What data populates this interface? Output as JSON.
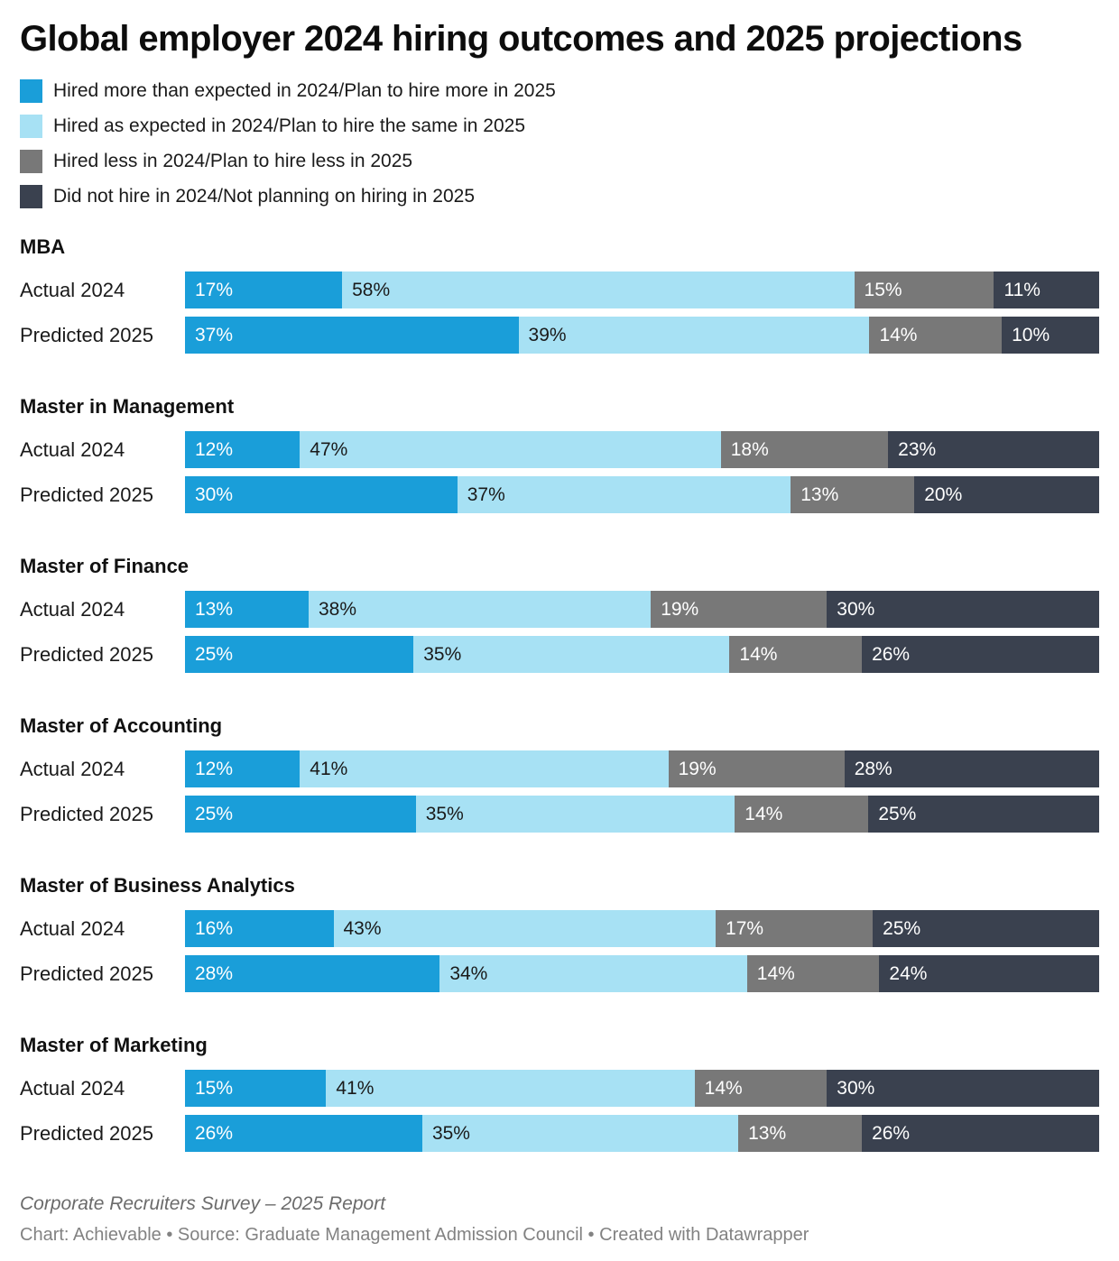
{
  "title": "Global employer 2024 hiring outcomes and 2025 projections",
  "chart_data": {
    "type": "bar",
    "variant": "stacked-horizontal",
    "unit": "%",
    "xlim": [
      0,
      100
    ],
    "legend_position": "top-left",
    "series": [
      {
        "name": "Hired more than expected in 2024/Plan to hire more in 2025",
        "color": "#1a9ed9"
      },
      {
        "name": "Hired as expected in 2024/Plan to hire the same in 2025",
        "color": "#a7e1f4"
      },
      {
        "name": "Hired less in 2024/Plan to hire less in 2025",
        "color": "#787878"
      },
      {
        "name": "Did not hire in 2024/Not planning on hiring in 2025",
        "color": "#3a414f"
      }
    ],
    "groups": [
      {
        "name": "MBA",
        "rows": [
          {
            "label": "Actual 2024",
            "values": [
              17,
              58,
              15,
              11
            ]
          },
          {
            "label": "Predicted 2025",
            "values": [
              37,
              39,
              14,
              10
            ]
          }
        ]
      },
      {
        "name": "Master in Management",
        "rows": [
          {
            "label": "Actual 2024",
            "values": [
              12,
              47,
              18,
              23
            ]
          },
          {
            "label": "Predicted 2025",
            "values": [
              30,
              37,
              13,
              20
            ]
          }
        ]
      },
      {
        "name": "Master of Finance",
        "rows": [
          {
            "label": "Actual 2024",
            "values": [
              13,
              38,
              19,
              30
            ]
          },
          {
            "label": "Predicted 2025",
            "values": [
              25,
              35,
              14,
              26
            ]
          }
        ]
      },
      {
        "name": "Master of Accounting",
        "rows": [
          {
            "label": "Actual 2024",
            "values": [
              12,
              41,
              19,
              28
            ]
          },
          {
            "label": "Predicted 2025",
            "values": [
              25,
              35,
              14,
              25
            ]
          }
        ]
      },
      {
        "name": "Master of Business Analytics",
        "rows": [
          {
            "label": "Actual 2024",
            "values": [
              16,
              43,
              17,
              25
            ]
          },
          {
            "label": "Predicted 2025",
            "values": [
              28,
              34,
              14,
              24
            ]
          }
        ]
      },
      {
        "name": "Master of Marketing",
        "rows": [
          {
            "label": "Actual 2024",
            "values": [
              15,
              41,
              14,
              30
            ]
          },
          {
            "label": "Predicted 2025",
            "values": [
              26,
              35,
              13,
              26
            ]
          }
        ]
      }
    ]
  },
  "footer": {
    "source_line": "Corporate Recruiters Survey – 2025 Report",
    "credit_line": "Chart: Achievable • Source: Graduate Management Admission Council • Created with Datawrapper"
  }
}
